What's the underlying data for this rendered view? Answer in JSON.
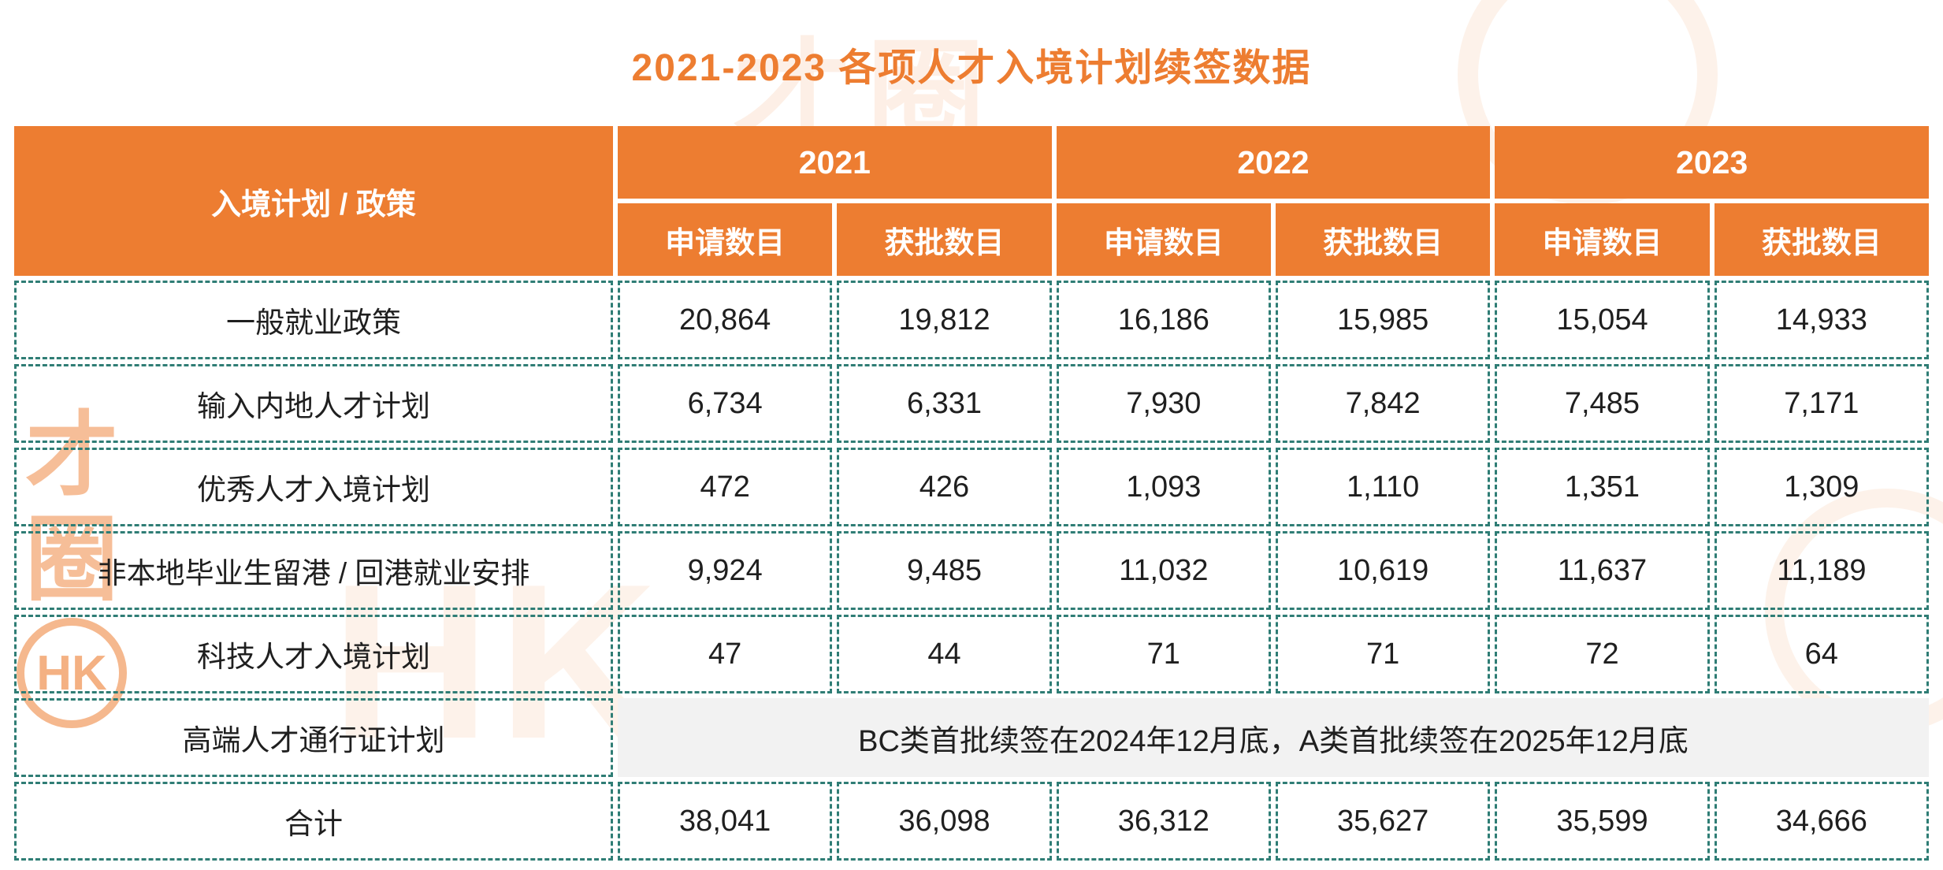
{
  "colors": {
    "accent_orange": "#ED7D31",
    "border_teal": "#2F7D75",
    "note_bg": "#F2F2F2",
    "header_text": "#FFFFFF"
  },
  "watermark": {
    "monogram": "HK",
    "glyph_a": "才",
    "glyph_b": "圈",
    "name_text": "才圈"
  },
  "chart_data": {
    "type": "table",
    "title": "2021-2023 各项人才入境计划续签数据",
    "corner_header": "入境计划 / 政策",
    "year_groups": [
      "2021",
      "2022",
      "2023"
    ],
    "sub_columns": [
      "申请数目",
      "获批数目"
    ],
    "rows": [
      {
        "label": "一般就业政策",
        "values": [
          "20,864",
          "19,812",
          "16,186",
          "15,985",
          "15,054",
          "14,933"
        ]
      },
      {
        "label": "输入内地人才计划",
        "values": [
          "6,734",
          "6,331",
          "7,930",
          "7,842",
          "7,485",
          "7,171"
        ]
      },
      {
        "label": "优秀人才入境计划",
        "values": [
          "472",
          "426",
          "1,093",
          "1,110",
          "1,351",
          "1,309"
        ]
      },
      {
        "label": "非本地毕业生留港 / 回港就业安排",
        "values": [
          "9,924",
          "9,485",
          "11,032",
          "10,619",
          "11,637",
          "11,189"
        ]
      },
      {
        "label": "科技人才入境计划",
        "values": [
          "47",
          "44",
          "71",
          "71",
          "72",
          "64"
        ]
      },
      {
        "label": "高端人才通行证计划",
        "note": "BC类首批续签在2024年12月底，A类首批续签在2025年12月底"
      },
      {
        "label": "合计",
        "values": [
          "38,041",
          "36,098",
          "36,312",
          "35,627",
          "35,599",
          "34,666"
        ],
        "is_total": true
      }
    ]
  }
}
